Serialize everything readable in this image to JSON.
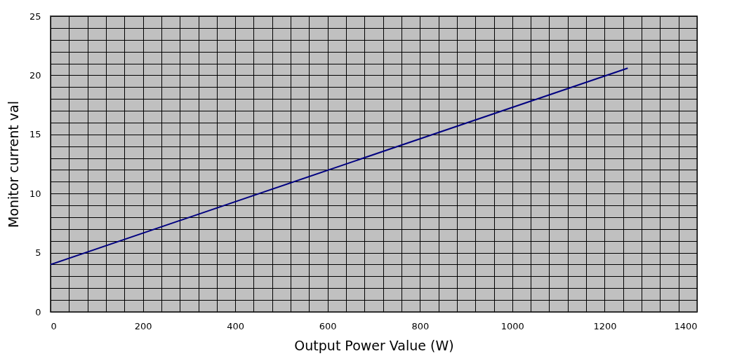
{
  "chart_data": {
    "type": "line",
    "xlabel": "Output Power Value (W)",
    "ylabel": "Monitor current val",
    "x": [
      0,
      1250
    ],
    "series": [
      {
        "color": "#000080",
        "values": [
          4,
          20.6
        ]
      }
    ],
    "xlim": [
      0,
      1400
    ],
    "xticks": [
      0,
      {
        "value": 40,
        "label": null
      },
      {
        "value": 80,
        "label": null
      },
      {
        "value": 120,
        "label": null
      },
      {
        "value": 160,
        "label": null
      },
      200,
      {
        "value": 240,
        "label": null
      },
      {
        "value": 280,
        "label": null
      },
      {
        "value": 320,
        "label": null
      },
      {
        "value": 360,
        "label": null
      },
      400,
      {
        "value": 440,
        "label": null
      },
      {
        "value": 480,
        "label": null
      },
      {
        "value": 520,
        "label": null
      },
      {
        "value": 560,
        "label": null
      },
      600,
      {
        "value": 640,
        "label": null
      },
      {
        "value": 680,
        "label": null
      },
      {
        "value": 720,
        "label": null
      },
      {
        "value": 760,
        "label": null
      },
      800,
      {
        "value": 840,
        "label": null
      },
      {
        "value": 880,
        "label": null
      },
      {
        "value": 920,
        "label": null
      },
      {
        "value": 960,
        "label": null
      },
      1000,
      {
        "value": 1040,
        "label": null
      },
      {
        "value": 1080,
        "label": null
      },
      {
        "value": 1120,
        "label": null
      },
      {
        "value": 1160,
        "label": null
      },
      1200,
      {
        "value": 1240,
        "label": null
      },
      {
        "value": 1280,
        "label": null
      },
      {
        "value": 1320,
        "label": null
      },
      {
        "value": 1360,
        "label": null
      },
      1400
    ],
    "ylim": [
      0,
      25
    ],
    "yticks": [
      0,
      {
        "value": 1,
        "label": null
      },
      {
        "value": 2,
        "label": null
      },
      {
        "value": 3,
        "label": null
      },
      {
        "value": 4,
        "label": null
      },
      5,
      {
        "value": 6,
        "label": null
      },
      {
        "value": 7,
        "label": null
      },
      {
        "value": 8,
        "label": null
      },
      {
        "value": 9,
        "label": null
      },
      10,
      {
        "value": 11,
        "label": null
      },
      {
        "value": 12,
        "label": null
      },
      {
        "value": 13,
        "label": null
      },
      {
        "value": 14,
        "label": null
      },
      15,
      {
        "value": 16,
        "label": null
      },
      {
        "value": 17,
        "label": null
      },
      {
        "value": 18,
        "label": null
      },
      {
        "value": 19,
        "label": null
      },
      20,
      {
        "value": 21,
        "label": null
      },
      {
        "value": 22,
        "label": null
      },
      {
        "value": 23,
        "label": null
      },
      {
        "value": 24,
        "label": null
      },
      25
    ],
    "grid": true,
    "marker": "none",
    "line_style": "solid"
  }
}
